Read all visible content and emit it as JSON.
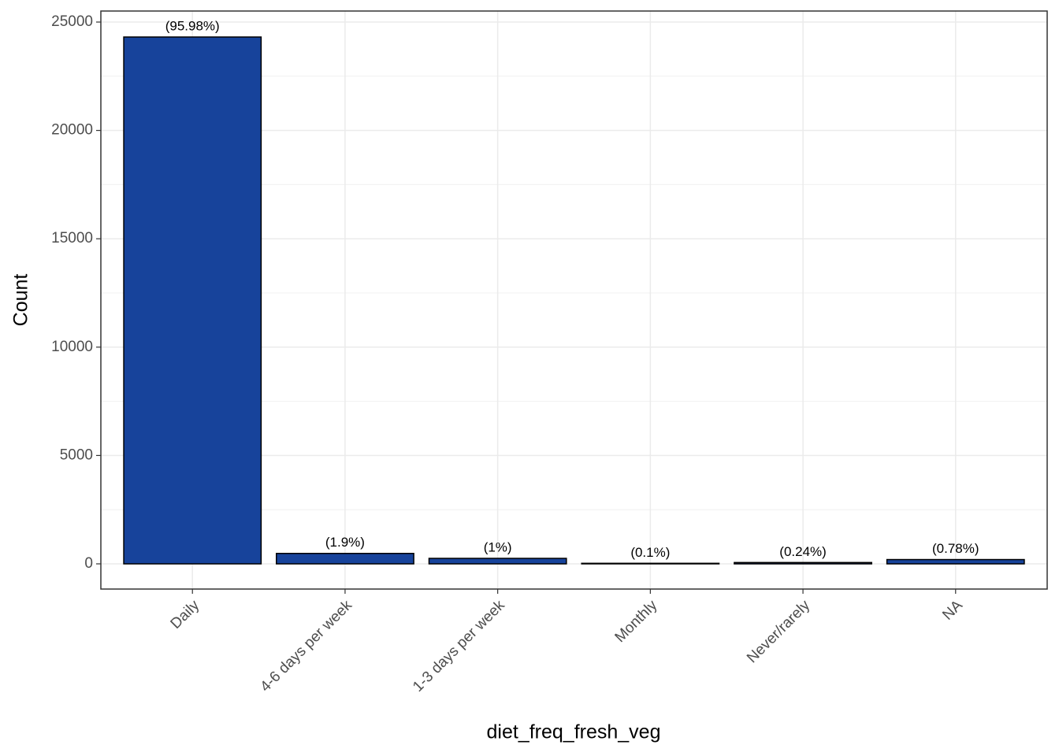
{
  "chart_data": {
    "type": "bar",
    "x_label": "diet_freq_fresh_veg",
    "y_label": "Count",
    "categories": [
      "Daily",
      "4-6 days per week",
      "1-3 days per week",
      "Monthly",
      "Never/rarely",
      "NA"
    ],
    "values": [
      24310,
      481,
      253,
      25,
      61,
      198
    ],
    "value_labels": [
      "(95.98%)",
      "(1.9%)",
      "(1%)",
      "(0.1%)",
      "(0.24%)",
      "(0.78%)"
    ],
    "color": "#17439b",
    "ylim": [
      -1163,
      25509
    ],
    "yticks": [
      0,
      5000,
      10000,
      15000,
      20000,
      25000
    ],
    "minor_yticks": [
      2500,
      7500,
      12500,
      17500,
      22500
    ],
    "grid": true
  }
}
